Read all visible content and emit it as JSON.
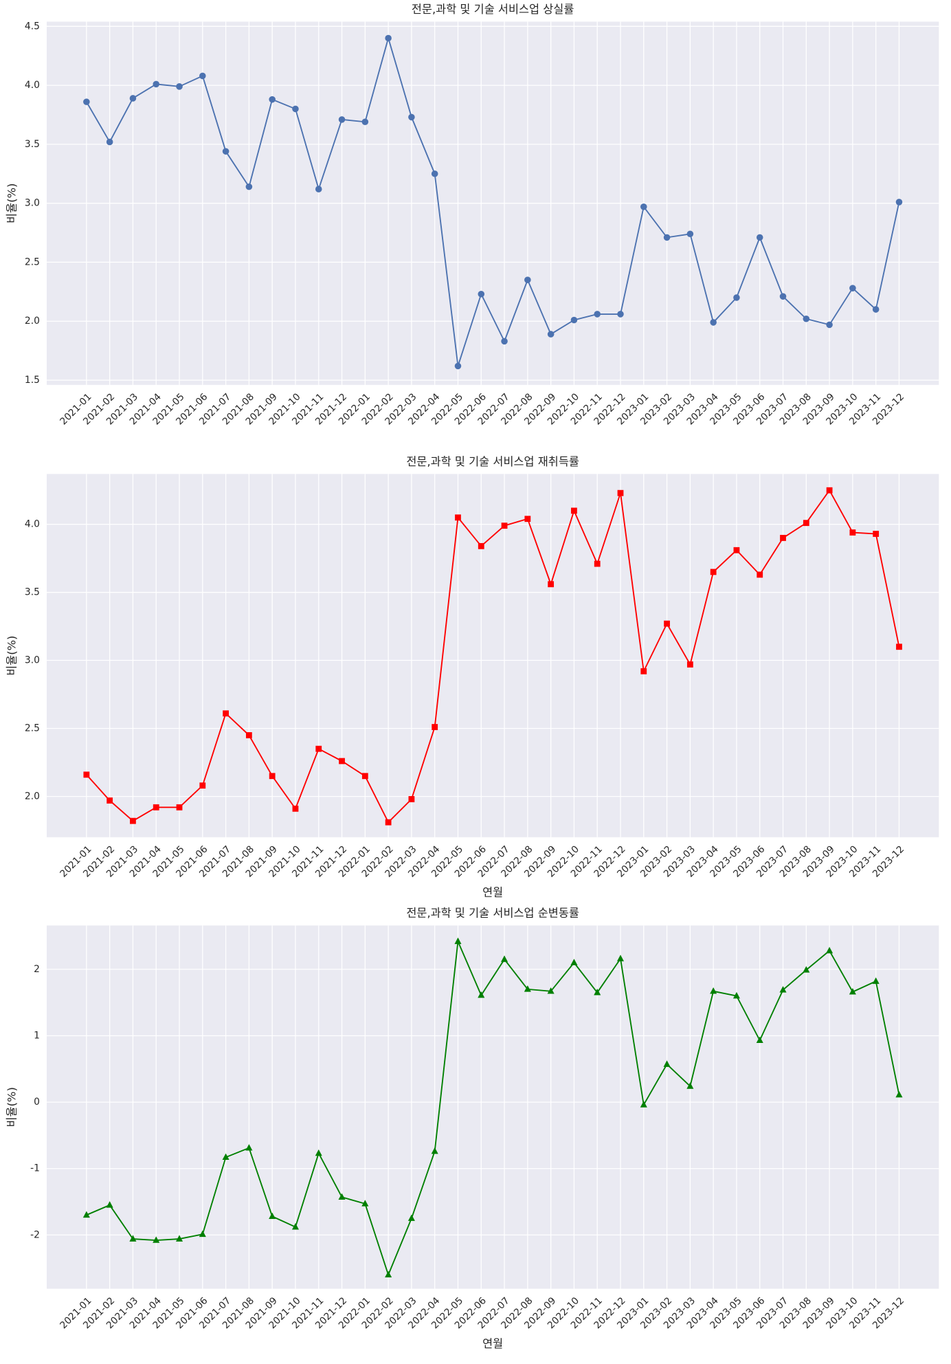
{
  "chart_data": [
    {
      "type": "line",
      "title": "전문,과학 및 기술 서비스업 상실률",
      "ylabel": "비율(%)",
      "color": "#4c72b0",
      "marker": "circle",
      "categories": [
        "2021-01",
        "2021-02",
        "2021-03",
        "2021-04",
        "2021-05",
        "2021-06",
        "2021-07",
        "2021-08",
        "2021-09",
        "2021-10",
        "2021-11",
        "2021-12",
        "2022-01",
        "2022-02",
        "2022-03",
        "2022-04",
        "2022-05",
        "2022-06",
        "2022-07",
        "2022-08",
        "2022-09",
        "2022-10",
        "2022-11",
        "2022-12",
        "2023-01",
        "2023-02",
        "2023-03",
        "2023-04",
        "2023-05",
        "2023-06",
        "2023-07",
        "2023-08",
        "2023-09",
        "2023-10",
        "2023-11",
        "2023-12"
      ],
      "values": [
        3.86,
        3.52,
        3.89,
        4.01,
        3.99,
        4.08,
        3.44,
        3.14,
        3.88,
        3.8,
        3.12,
        3.71,
        3.69,
        4.4,
        3.73,
        3.25,
        1.62,
        2.23,
        1.83,
        2.35,
        1.89,
        2.01,
        2.06,
        2.06,
        2.97,
        2.71,
        2.74,
        1.99,
        2.2,
        2.71,
        2.21,
        2.02,
        1.97,
        2.28,
        2.1,
        3.01
      ],
      "ylim": [
        1.46,
        4.54
      ],
      "yticks": [
        {
          "value": 1.5,
          "label": "1.5"
        },
        {
          "value": 2,
          "label": "2.0"
        },
        {
          "value": 2.5,
          "label": "2.5"
        },
        {
          "value": 3,
          "label": "3.0"
        },
        {
          "value": 3.5,
          "label": "3.5"
        },
        {
          "value": 4,
          "label": "4.0"
        },
        {
          "value": 4.5,
          "label": "4.5"
        }
      ],
      "grid": true
    },
    {
      "type": "line",
      "title": "전문,과학 및 기술 서비스업 재취득률",
      "xlabel": "연월",
      "ylabel": "비율(%)",
      "color": "#ff0000",
      "marker": "square",
      "categories": [
        "2021-01",
        "2021-02",
        "2021-03",
        "2021-04",
        "2021-05",
        "2021-06",
        "2021-07",
        "2021-08",
        "2021-09",
        "2021-10",
        "2021-11",
        "2021-12",
        "2022-01",
        "2022-02",
        "2022-03",
        "2022-04",
        "2022-05",
        "2022-06",
        "2022-07",
        "2022-08",
        "2022-09",
        "2022-10",
        "2022-11",
        "2022-12",
        "2023-01",
        "2023-02",
        "2023-03",
        "2023-04",
        "2023-05",
        "2023-06",
        "2023-07",
        "2023-08",
        "2023-09",
        "2023-10",
        "2023-11",
        "2023-12"
      ],
      "values": [
        2.16,
        1.97,
        1.82,
        1.92,
        1.92,
        2.08,
        2.61,
        2.45,
        2.15,
        1.91,
        2.35,
        2.26,
        2.15,
        1.81,
        1.98,
        2.51,
        4.05,
        3.84,
        3.99,
        4.04,
        3.56,
        4.1,
        3.71,
        4.23,
        2.92,
        3.27,
        2.97,
        3.65,
        3.81,
        3.63,
        3.9,
        4.01,
        4.25,
        3.94,
        3.93,
        3.1
      ],
      "ylim": [
        1.7,
        4.37
      ],
      "yticks": [
        {
          "value": 2,
          "label": "2.0"
        },
        {
          "value": 2.5,
          "label": "2.5"
        },
        {
          "value": 3,
          "label": "3.0"
        },
        {
          "value": 3.5,
          "label": "3.5"
        },
        {
          "value": 4,
          "label": "4.0"
        }
      ],
      "grid": true
    },
    {
      "type": "line",
      "title": "전문,과학 및 기술 서비스업 순변동률",
      "xlabel": "연월",
      "ylabel": "비율(%)",
      "color": "#008000",
      "marker": "triangle",
      "categories": [
        "2021-01",
        "2021-02",
        "2021-03",
        "2021-04",
        "2021-05",
        "2021-06",
        "2021-07",
        "2021-08",
        "2021-09",
        "2021-10",
        "2021-11",
        "2021-12",
        "2022-01",
        "2022-02",
        "2022-03",
        "2022-04",
        "2022-05",
        "2022-06",
        "2022-07",
        "2022-08",
        "2022-09",
        "2022-10",
        "2022-11",
        "2022-12",
        "2023-01",
        "2023-02",
        "2023-03",
        "2023-04",
        "2023-05",
        "2023-06",
        "2023-07",
        "2023-08",
        "2023-09",
        "2023-10",
        "2023-11",
        "2023-12"
      ],
      "values": [
        -1.7,
        -1.55,
        -2.06,
        -2.08,
        -2.06,
        -1.99,
        -0.83,
        -0.69,
        -1.72,
        -1.88,
        -0.77,
        -1.43,
        -1.53,
        -2.6,
        -1.75,
        -0.74,
        2.42,
        1.61,
        2.15,
        1.7,
        1.67,
        2.1,
        1.65,
        2.16,
        -0.04,
        0.57,
        0.24,
        1.67,
        1.6,
        0.93,
        1.69,
        1.99,
        2.28,
        1.66,
        1.82,
        0.11
      ],
      "ylim": [
        -2.81,
        2.66
      ],
      "yticks": [
        -2,
        -1,
        0,
        1,
        2
      ],
      "grid": true
    }
  ]
}
